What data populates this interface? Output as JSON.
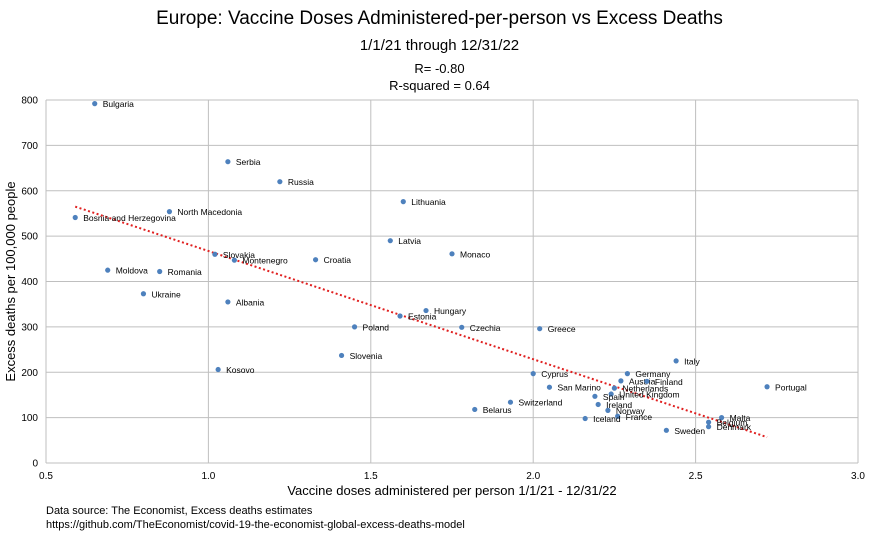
{
  "chart_data": {
    "type": "scatter",
    "title": "Europe: Vaccine Doses Administered-per-person vs Excess Deaths",
    "subtitle": "1/1/21 through 12/31/22",
    "r_text": "R= -0.80",
    "r2_text": "R-squared = 0.64",
    "xlabel": "Vaccine doses administered per person 1/1/21 - 12/31/22",
    "ylabel": "Excess deaths per 100,000 people",
    "xlim": [
      0.5,
      3.0
    ],
    "ylim": [
      0,
      800
    ],
    "x_ticks": [
      "0.5",
      "1.0",
      "1.5",
      "2.0",
      "2.5",
      "3.0"
    ],
    "y_ticks": [
      "0",
      "100",
      "200",
      "300",
      "400",
      "500",
      "600",
      "700",
      "800"
    ],
    "grid": true,
    "point_color": "#4e81bd",
    "trendline": {
      "style": "dotted",
      "color": "#e02020",
      "x": [
        0.59,
        2.72
      ],
      "y": [
        565,
        57
      ]
    },
    "points": [
      {
        "label": "Bulgaria",
        "x": 0.65,
        "y": 792
      },
      {
        "label": "Serbia",
        "x": 1.06,
        "y": 664
      },
      {
        "label": "Russia",
        "x": 1.22,
        "y": 620
      },
      {
        "label": "Lithuania",
        "x": 1.6,
        "y": 576
      },
      {
        "label": "North Macedonia",
        "x": 0.88,
        "y": 554
      },
      {
        "label": "Bosnia and Herzegovina",
        "x": 0.59,
        "y": 541
      },
      {
        "label": "Latvia",
        "x": 1.56,
        "y": 490
      },
      {
        "label": "Monaco",
        "x": 1.75,
        "y": 461
      },
      {
        "label": "Slovakia",
        "x": 1.02,
        "y": 460
      },
      {
        "label": "Montenegro",
        "x": 1.08,
        "y": 447
      },
      {
        "label": "Croatia",
        "x": 1.33,
        "y": 448
      },
      {
        "label": "Moldova",
        "x": 0.69,
        "y": 425
      },
      {
        "label": "Romania",
        "x": 0.85,
        "y": 422
      },
      {
        "label": "Ukraine",
        "x": 0.8,
        "y": 373
      },
      {
        "label": "Albania",
        "x": 1.06,
        "y": 355
      },
      {
        "label": "Hungary",
        "x": 1.67,
        "y": 336
      },
      {
        "label": "Estonia",
        "x": 1.59,
        "y": 324
      },
      {
        "label": "Poland",
        "x": 1.45,
        "y": 300
      },
      {
        "label": "Czechia",
        "x": 1.78,
        "y": 299
      },
      {
        "label": "Greece",
        "x": 2.02,
        "y": 296
      },
      {
        "label": "Slovenia",
        "x": 1.41,
        "y": 237
      },
      {
        "label": "Italy",
        "x": 2.44,
        "y": 225
      },
      {
        "label": "Kosovo",
        "x": 1.03,
        "y": 206
      },
      {
        "label": "Cyprus",
        "x": 2.0,
        "y": 197
      },
      {
        "label": "Germany",
        "x": 2.29,
        "y": 197
      },
      {
        "label": "Austria",
        "x": 2.27,
        "y": 181
      },
      {
        "label": "Finland",
        "x": 2.35,
        "y": 180
      },
      {
        "label": "Portugal",
        "x": 2.72,
        "y": 168
      },
      {
        "label": "San Marino",
        "x": 2.05,
        "y": 167
      },
      {
        "label": "Netherlands",
        "x": 2.25,
        "y": 165
      },
      {
        "label": "United Kingdom",
        "x": 2.24,
        "y": 152
      },
      {
        "label": "Spain",
        "x": 2.19,
        "y": 147
      },
      {
        "label": "Switzerland",
        "x": 1.93,
        "y": 134
      },
      {
        "label": "Ireland",
        "x": 2.2,
        "y": 129
      },
      {
        "label": "Belarus",
        "x": 1.82,
        "y": 118
      },
      {
        "label": "Norway",
        "x": 2.23,
        "y": 116
      },
      {
        "label": "France",
        "x": 2.26,
        "y": 103
      },
      {
        "label": "Iceland",
        "x": 2.16,
        "y": 98
      },
      {
        "label": "Malta",
        "x": 2.58,
        "y": 100
      },
      {
        "label": "Belgium",
        "x": 2.54,
        "y": 90
      },
      {
        "label": "Denmark",
        "x": 2.54,
        "y": 80
      },
      {
        "label": "Sweden",
        "x": 2.41,
        "y": 72
      }
    ]
  },
  "source": {
    "line1": "Data source: The Economist, Excess deaths estimates",
    "line2": "https://github.com/TheEconomist/covid-19-the-economist-global-excess-deaths-model"
  }
}
